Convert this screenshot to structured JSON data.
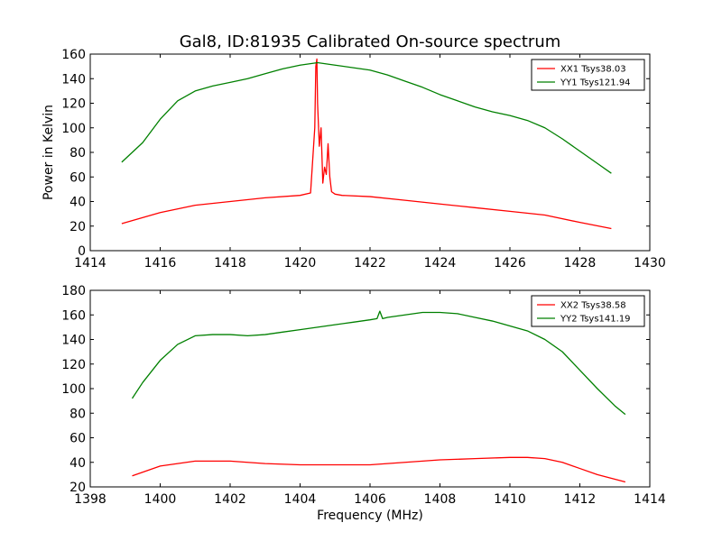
{
  "title": "Gal8, ID:81935 Calibrated On-source spectrum",
  "colors": {
    "xx": "#ff0000",
    "yy": "#008000"
  },
  "chart_data": [
    {
      "type": "line",
      "xlim": [
        1414,
        1430
      ],
      "ylim": [
        0,
        160
      ],
      "xticks": [
        1414,
        1416,
        1418,
        1420,
        1422,
        1424,
        1426,
        1428,
        1430
      ],
      "yticks": [
        0,
        20,
        40,
        60,
        80,
        100,
        120,
        140,
        160
      ],
      "xlabel": "",
      "ylabel": "Power in Kelvin",
      "legend_position": "top-right",
      "series": [
        {
          "name": "XX1 Tsys38.03",
          "color": "#ff0000",
          "x": [
            1414.9,
            1416,
            1417,
            1418,
            1419,
            1420,
            1420.3,
            1420.42,
            1420.45,
            1420.48,
            1420.5,
            1420.55,
            1420.6,
            1420.65,
            1420.7,
            1420.75,
            1420.8,
            1420.85,
            1420.9,
            1421,
            1421.2,
            1422,
            1423,
            1424,
            1425,
            1426,
            1427,
            1428,
            1428.9
          ],
          "y": [
            22,
            31,
            37,
            40,
            43,
            45,
            47,
            100,
            150,
            156,
            120,
            85,
            100,
            55,
            68,
            62,
            87,
            60,
            48,
            46,
            45,
            44,
            41,
            38,
            35,
            32,
            29,
            23,
            18
          ]
        },
        {
          "name": "YY1 Tsys121.94",
          "color": "#008000",
          "x": [
            1414.9,
            1415.5,
            1416,
            1416.5,
            1417,
            1417.5,
            1418,
            1418.5,
            1419,
            1419.5,
            1420,
            1420.5,
            1421,
            1421.5,
            1422,
            1422.5,
            1423,
            1423.5,
            1424,
            1424.5,
            1425,
            1425.5,
            1426,
            1426.5,
            1427,
            1427.5,
            1428,
            1428.5,
            1428.9
          ],
          "y": [
            72,
            88,
            107,
            122,
            130,
            134,
            137,
            140,
            144,
            148,
            151,
            153,
            151,
            149,
            147,
            143,
            138,
            133,
            127,
            122,
            117,
            113,
            110,
            106,
            100,
            91,
            81,
            71,
            63
          ]
        }
      ]
    },
    {
      "type": "line",
      "xlim": [
        1398,
        1414
      ],
      "ylim": [
        20,
        180
      ],
      "xticks": [
        1398,
        1400,
        1402,
        1404,
        1406,
        1408,
        1410,
        1412,
        1414
      ],
      "yticks": [
        20,
        40,
        60,
        80,
        100,
        120,
        140,
        160,
        180
      ],
      "xlabel": "Frequency (MHz)",
      "ylabel": "",
      "legend_position": "top-right",
      "series": [
        {
          "name": "XX2 Tsys38.58",
          "color": "#ff0000",
          "x": [
            1399.2,
            1400,
            1401,
            1402,
            1403,
            1404,
            1405,
            1406,
            1407,
            1408,
            1409,
            1410,
            1410.5,
            1411,
            1411.5,
            1412,
            1412.5,
            1413.3
          ],
          "y": [
            29,
            37,
            41,
            41,
            39,
            38,
            38,
            38,
            40,
            42,
            43,
            44,
            44,
            43,
            40,
            35,
            30,
            24
          ]
        },
        {
          "name": "YY2 Tsys141.19",
          "color": "#008000",
          "x": [
            1399.2,
            1399.5,
            1400,
            1400.5,
            1401,
            1401.5,
            1402,
            1402.5,
            1403,
            1403.5,
            1404,
            1404.5,
            1405,
            1405.5,
            1406,
            1406.2,
            1406.28,
            1406.36,
            1406.5,
            1407,
            1407.5,
            1408,
            1408.5,
            1409,
            1409.5,
            1410,
            1410.5,
            1411,
            1411.5,
            1412,
            1412.5,
            1413,
            1413.3
          ],
          "y": [
            92,
            105,
            123,
            136,
            143,
            144,
            144,
            143,
            144,
            146,
            148,
            150,
            152,
            154,
            156,
            157,
            163,
            157,
            158,
            160,
            162,
            162,
            161,
            158,
            155,
            151,
            147,
            140,
            130,
            115,
            100,
            86,
            79
          ]
        }
      ]
    }
  ]
}
